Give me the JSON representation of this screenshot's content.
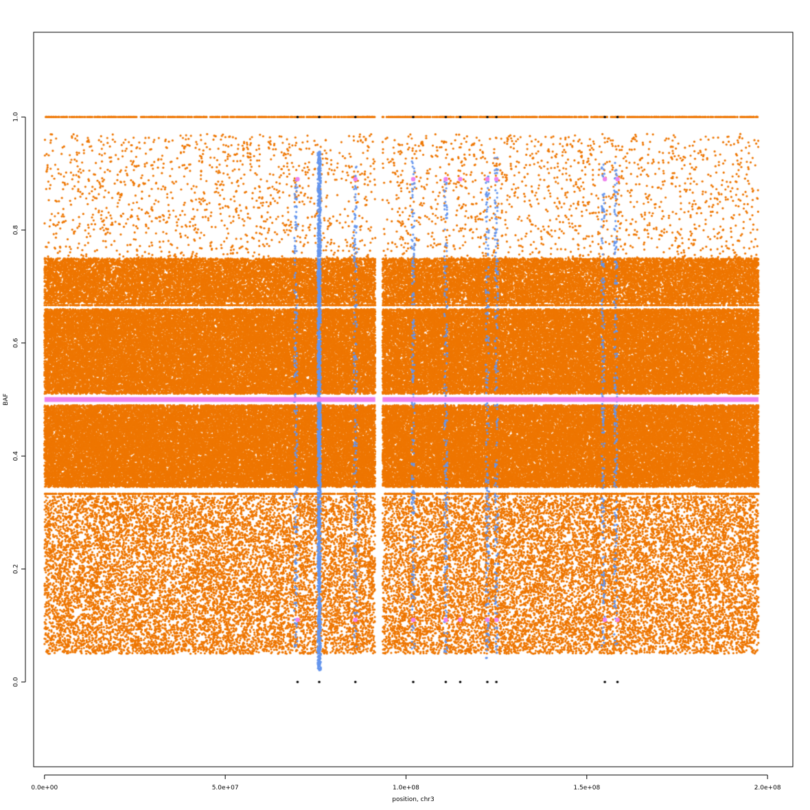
{
  "chart_data": {
    "type": "scatter",
    "title": "",
    "xlabel": "position, chr3",
    "ylabel": "BAF",
    "xlim": [
      -3000000,
      207000000
    ],
    "ylim": [
      -0.15,
      1.15
    ],
    "x_ticks": [
      {
        "value": 0,
        "label": "0.0e+00"
      },
      {
        "value": 50000000,
        "label": "5.0e+07"
      },
      {
        "value": 100000000,
        "label": "1.0e+08"
      },
      {
        "value": 150000000,
        "label": "1.5e+08"
      },
      {
        "value": 200000000,
        "label": "2.0e+08"
      }
    ],
    "y_ticks": [
      {
        "value": 0.0,
        "label": "0.0"
      },
      {
        "value": 0.2,
        "label": "0.2"
      },
      {
        "value": 0.4,
        "label": "0.4"
      },
      {
        "value": 0.6,
        "label": "0.6"
      },
      {
        "value": 0.8,
        "label": "0.8"
      },
      {
        "value": 1.0,
        "label": "1.0"
      }
    ],
    "grid": false,
    "legend": "none",
    "colors": {
      "orange": "#ee7600",
      "blue": "#6495ed",
      "violet": "#ee82ee",
      "black": "#000000"
    },
    "x_range": [
      0,
      197500000
    ],
    "centromere_gap": [
      91500000,
      93500000
    ],
    "series": [
      {
        "color": "orange",
        "description_points": "dense SNP BAF points across chromosome; heterozygous bands ~0.35-0.49 and ~0.51-0.66; sparse points 0.05-0.35 and 0.67-0.97; homozygous line at 1.0",
        "bands": [
          {
            "y": [
              0.345,
              0.49
            ],
            "density": "high"
          },
          {
            "y": [
              0.51,
              0.66
            ],
            "density": "high"
          },
          {
            "y": [
              0.05,
              0.33
            ],
            "density": "medium"
          },
          {
            "y": [
              0.67,
              0.75
            ],
            "density": "medium"
          },
          {
            "y": [
              0.75,
              0.97
            ],
            "density": "low"
          }
        ],
        "lines": [
          0.333,
          0.667,
          1.0
        ]
      },
      {
        "color": "violet",
        "values": {
          "y": 0.5,
          "x_segments": [
            [
              0,
              91500000
            ],
            [
              93500000,
              197500000
            ]
          ]
        },
        "points": [
          {
            "x": 70000000,
            "y": 0.89
          },
          {
            "x": 86000000,
            "y": 0.89
          },
          {
            "x": 102000000,
            "y": 0.89
          },
          {
            "x": 111000000,
            "y": 0.89
          },
          {
            "x": 115000000,
            "y": 0.89
          },
          {
            "x": 122500000,
            "y": 0.89
          },
          {
            "x": 125000000,
            "y": 0.89
          },
          {
            "x": 155000000,
            "y": 0.89
          },
          {
            "x": 158500000,
            "y": 0.89
          },
          {
            "x": 70000000,
            "y": 0.11
          },
          {
            "x": 86000000,
            "y": 0.11
          },
          {
            "x": 102000000,
            "y": 0.11
          },
          {
            "x": 111000000,
            "y": 0.11
          },
          {
            "x": 115000000,
            "y": 0.11
          },
          {
            "x": 122500000,
            "y": 0.11
          },
          {
            "x": 125000000,
            "y": 0.11
          },
          {
            "x": 155000000,
            "y": 0.11
          },
          {
            "x": 158500000,
            "y": 0.11
          }
        ]
      },
      {
        "color": "blue",
        "columns": [
          {
            "x": 76000000,
            "y": [
              0.02,
              0.94
            ],
            "density": "high"
          },
          {
            "x": 69500000,
            "y": [
              0.06,
              0.9
            ],
            "density": "low"
          },
          {
            "x": 86000000,
            "y": [
              0.06,
              0.92
            ],
            "density": "low"
          },
          {
            "x": 102000000,
            "y": [
              0.05,
              0.93
            ],
            "density": "low"
          },
          {
            "x": 111000000,
            "y": [
              0.05,
              0.9
            ],
            "density": "low"
          },
          {
            "x": 122500000,
            "y": [
              0.04,
              0.9
            ],
            "density": "low"
          },
          {
            "x": 125000000,
            "y": [
              0.05,
              0.93
            ],
            "density": "low"
          },
          {
            "x": 154500000,
            "y": [
              0.06,
              0.92
            ],
            "density": "low"
          },
          {
            "x": 158000000,
            "y": [
              0.06,
              0.92
            ],
            "density": "low"
          }
        ]
      },
      {
        "color": "black",
        "points": [
          {
            "x": 70000000,
            "y": 0.0
          },
          {
            "x": 76000000,
            "y": 0.0
          },
          {
            "x": 86000000,
            "y": 0.0
          },
          {
            "x": 102000000,
            "y": 0.0
          },
          {
            "x": 111000000,
            "y": 0.0
          },
          {
            "x": 115000000,
            "y": 0.0
          },
          {
            "x": 122500000,
            "y": 0.0
          },
          {
            "x": 125000000,
            "y": 0.0
          },
          {
            "x": 155000000,
            "y": 0.0
          },
          {
            "x": 158500000,
            "y": 0.0
          },
          {
            "x": 70000000,
            "y": 1.0
          },
          {
            "x": 76000000,
            "y": 1.0
          },
          {
            "x": 86000000,
            "y": 1.0
          },
          {
            "x": 102000000,
            "y": 1.0
          },
          {
            "x": 111000000,
            "y": 1.0
          },
          {
            "x": 115000000,
            "y": 1.0
          },
          {
            "x": 122500000,
            "y": 1.0
          },
          {
            "x": 125000000,
            "y": 1.0
          },
          {
            "x": 155000000,
            "y": 1.0
          },
          {
            "x": 158500000,
            "y": 1.0
          }
        ]
      }
    ]
  }
}
